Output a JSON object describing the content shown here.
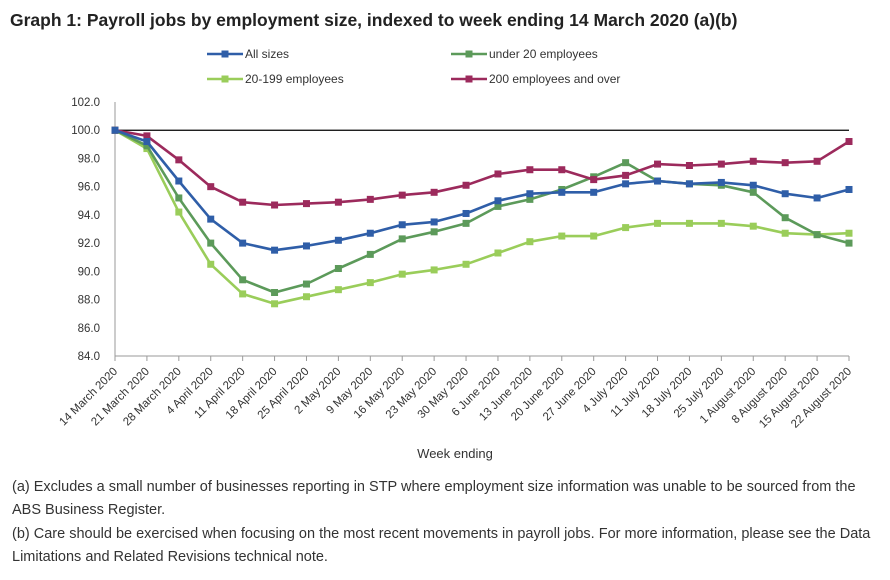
{
  "chart_data": {
    "type": "line",
    "title": "Graph 1: Payroll jobs by employment size, indexed to week ending 14 March 2020 (a)(b)",
    "xlabel": "Week ending",
    "ylabel": "",
    "ylim": [
      84,
      102
    ],
    "yticks": [
      84.0,
      86.0,
      88.0,
      90.0,
      92.0,
      94.0,
      96.0,
      98.0,
      100.0,
      102.0
    ],
    "reference_line": 100,
    "grid": false,
    "legend_position": "top",
    "categories": [
      "14 March 2020",
      "21 March 2020",
      "28 March 2020",
      "4 April 2020",
      "11 April 2020",
      "18 April 2020",
      "25 April 2020",
      "2 May 2020",
      "9 May 2020",
      "16 May 2020",
      "23 May 2020",
      "30 May 2020",
      "6 June 2020",
      "13 June 2020",
      "20 June 2020",
      "27 June 2020",
      "4 July 2020",
      "11 July 2020",
      "18 July 2020",
      "25 July 2020",
      "1 August 2020",
      "8 August 2020",
      "15 August 2020",
      "22 August 2020"
    ],
    "series": [
      {
        "name": "All sizes",
        "color": "#2f5ea8",
        "values": [
          100.0,
          99.2,
          96.4,
          93.7,
          92.0,
          91.5,
          91.8,
          92.2,
          92.7,
          93.3,
          93.5,
          94.1,
          95.0,
          95.5,
          95.6,
          95.6,
          96.2,
          96.4,
          96.2,
          96.3,
          96.1,
          95.5,
          95.2,
          95.8
        ]
      },
      {
        "name": "under 20 employees",
        "color": "#5c9a5a",
        "values": [
          100.0,
          98.9,
          95.2,
          92.0,
          89.4,
          88.5,
          89.1,
          90.2,
          91.2,
          92.3,
          92.8,
          93.4,
          94.6,
          95.1,
          95.8,
          96.7,
          97.7,
          96.4,
          96.2,
          96.1,
          95.6,
          93.8,
          92.6,
          92.0
        ]
      },
      {
        "name": "20-199 employees",
        "color": "#9acd5a",
        "values": [
          100.0,
          98.7,
          94.2,
          90.5,
          88.4,
          87.7,
          88.2,
          88.7,
          89.2,
          89.8,
          90.1,
          90.5,
          91.3,
          92.1,
          92.5,
          92.5,
          93.1,
          93.4,
          93.4,
          93.4,
          93.2,
          92.7,
          92.6,
          92.7
        ]
      },
      {
        "name": "200 employees and over",
        "color": "#9c2a5c",
        "values": [
          100.0,
          99.6,
          97.9,
          96.0,
          94.9,
          94.7,
          94.8,
          94.9,
          95.1,
          95.4,
          95.6,
          96.1,
          96.9,
          97.2,
          97.2,
          96.5,
          96.8,
          97.6,
          97.5,
          97.6,
          97.8,
          97.7,
          97.8,
          99.2
        ]
      }
    ]
  },
  "notes": {
    "a": "(a) Excludes a small number of businesses reporting in STP where employment size information was unable to be sourced from the ABS Business Register.",
    "b": "(b) Care should be exercised when focusing on the most recent movements in payroll jobs. For more information, please see the Data Limitations and Related Revisions technical note."
  }
}
